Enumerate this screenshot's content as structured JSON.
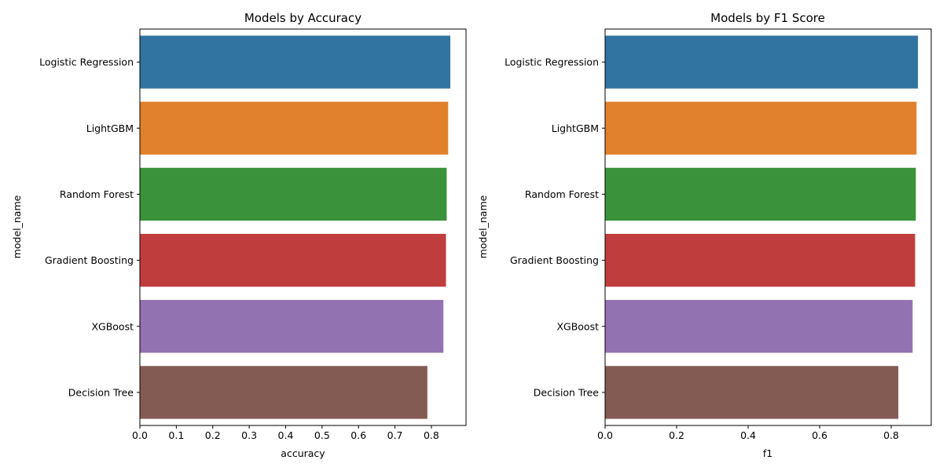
{
  "colors": {
    "palette": [
      "#3274a1",
      "#e1812c",
      "#3a923a",
      "#c03d3e",
      "#9372b2",
      "#845b53"
    ],
    "axis": "#000000",
    "background": "#ffffff"
  },
  "chart_data": [
    {
      "type": "bar",
      "orientation": "horizontal",
      "title": "Models by Accuracy",
      "xlabel": "accuracy",
      "ylabel": "model_name",
      "categories": [
        "Logistic Regression",
        "LightGBM",
        "Random Forest",
        "Gradient Boosting",
        "XGBoost",
        "Decision Tree"
      ],
      "values": [
        0.852,
        0.846,
        0.842,
        0.84,
        0.833,
        0.789
      ],
      "xlim": [
        0,
        0.895
      ],
      "xticks": [
        0.0,
        0.1,
        0.2,
        0.3,
        0.4,
        0.5,
        0.6,
        0.7,
        0.8
      ],
      "xtick_labels": [
        "0.0",
        "0.1",
        "0.2",
        "0.3",
        "0.4",
        "0.5",
        "0.6",
        "0.7",
        "0.8"
      ],
      "grid": false,
      "legend": "none"
    },
    {
      "type": "bar",
      "orientation": "horizontal",
      "title": "Models by F1 Score",
      "xlabel": "f1",
      "ylabel": "model_name",
      "categories": [
        "Logistic Regression",
        "LightGBM",
        "Random Forest",
        "Gradient Boosting",
        "XGBoost",
        "Decision Tree"
      ],
      "values": [
        0.875,
        0.871,
        0.869,
        0.867,
        0.86,
        0.82
      ],
      "xlim": [
        0,
        0.912
      ],
      "xticks": [
        0.0,
        0.2,
        0.4,
        0.6,
        0.8
      ],
      "xtick_labels": [
        "0.0",
        "0.2",
        "0.4",
        "0.6",
        "0.8"
      ],
      "grid": false,
      "legend": "none"
    }
  ]
}
